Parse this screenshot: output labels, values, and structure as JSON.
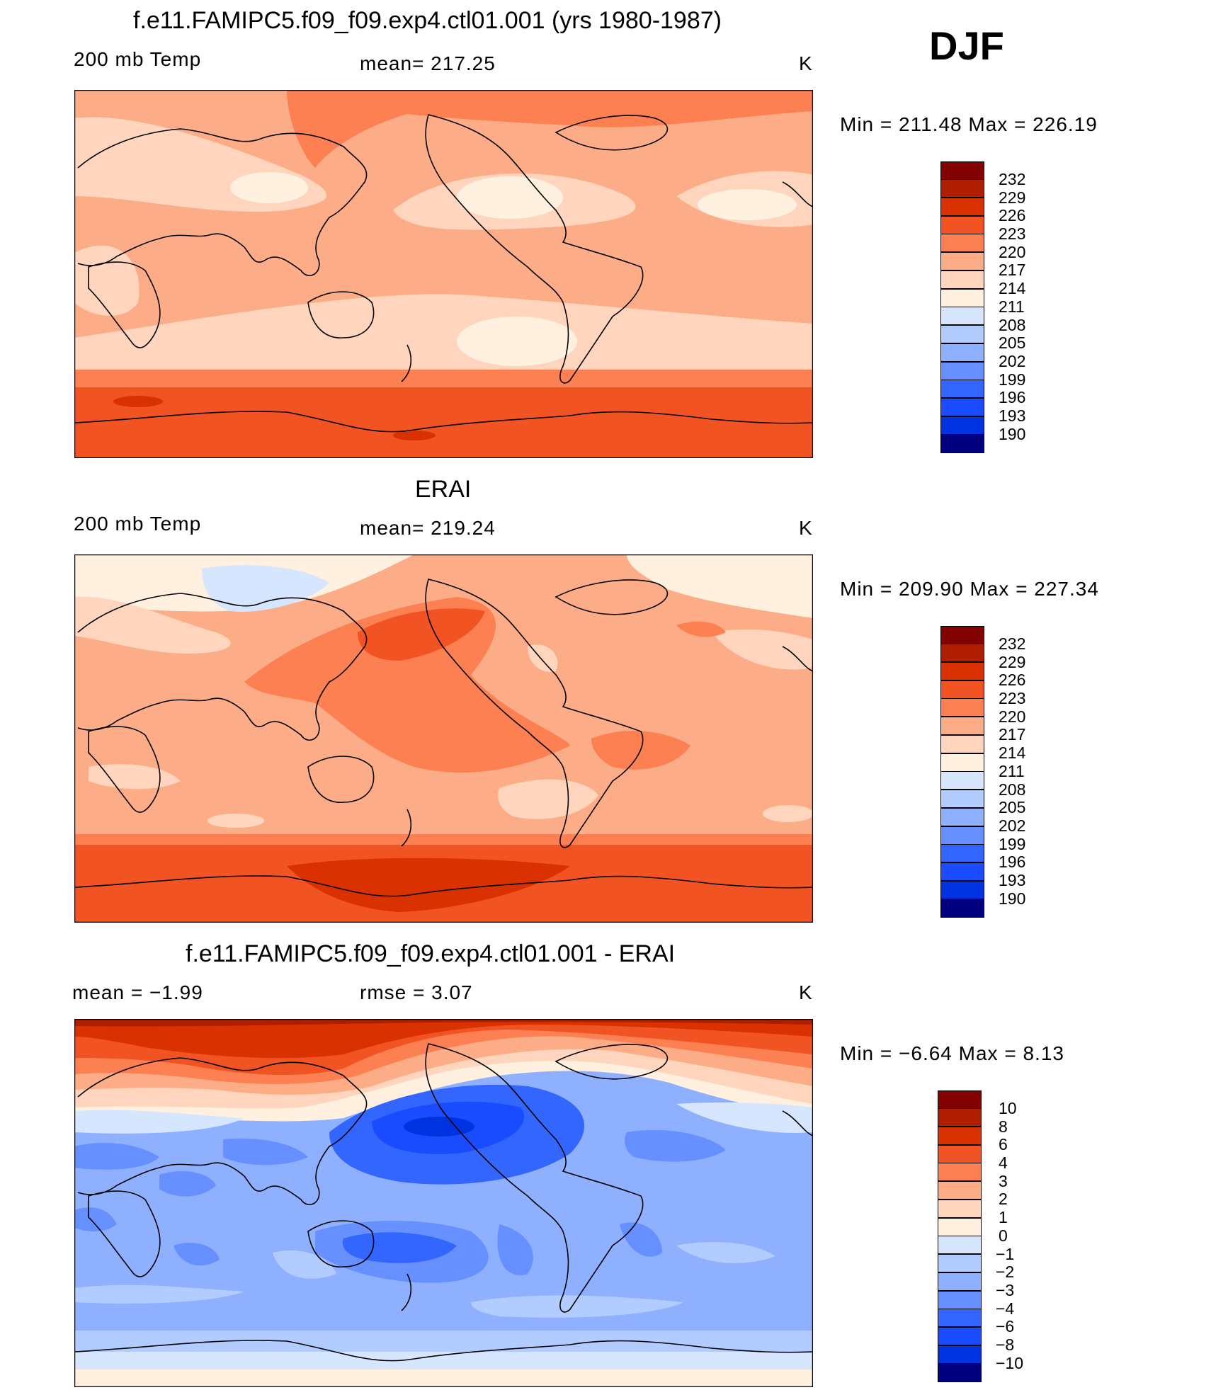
{
  "season": "DJF",
  "colors": {
    "abs_scale": [
      "#00007f",
      "#0019b0",
      "#0033e0",
      "#1a4cff",
      "#3366ff",
      "#6690ff",
      "#8fb0ff",
      "#b3ccff",
      "#d6e6ff",
      "#fff0e0",
      "#ffd5be",
      "#fcad88",
      "#fc8052",
      "#f25322",
      "#d93100",
      "#b01e00",
      "#820000"
    ],
    "diff_scale": [
      "#00007f",
      "#0019b0",
      "#0033e0",
      "#1a4cff",
      "#3366ff",
      "#6690ff",
      "#8fb0ff",
      "#b3ccff",
      "#d6e6ff",
      "#fff0e0",
      "#ffd5be",
      "#fcad88",
      "#fc8052",
      "#f25322",
      "#d93100",
      "#b01e00",
      "#820000"
    ]
  },
  "panels": [
    {
      "title": "f.e11.FAMIPC5.f09_f09.exp4.ctl01.001 (yrs 1980-1987)",
      "left_label": "200 mb Temp",
      "center_label": "mean=  217.25",
      "units": "K",
      "stats": "Min  =  211.48  Max  =  226.19",
      "colorbar_ticks": [
        "232",
        "229",
        "226",
        "223",
        "220",
        "217",
        "214",
        "211",
        "208",
        "205",
        "202",
        "199",
        "196",
        "193",
        "190"
      ]
    },
    {
      "title": "ERAI",
      "left_label": "200 mb Temp",
      "center_label": "mean=  219.24",
      "units": "K",
      "stats": "Min  =  209.90  Max  =  227.34",
      "colorbar_ticks": [
        "232",
        "229",
        "226",
        "223",
        "220",
        "217",
        "214",
        "211",
        "208",
        "205",
        "202",
        "199",
        "196",
        "193",
        "190"
      ]
    },
    {
      "title": "f.e11.FAMIPC5.f09_f09.exp4.ctl01.001 - ERAI",
      "left_label": "mean  =     −1.99",
      "center_label": "rmse  =      3.07",
      "units": "K",
      "stats": "Min  =     −6.64  Max  =       8.13",
      "colorbar_ticks": [
        "10",
        "8",
        "6",
        "4",
        "3",
        "2",
        "1",
        "0",
        "−1",
        "−2",
        "−3",
        "−4",
        "−6",
        "−8",
        "−10"
      ]
    }
  ]
}
